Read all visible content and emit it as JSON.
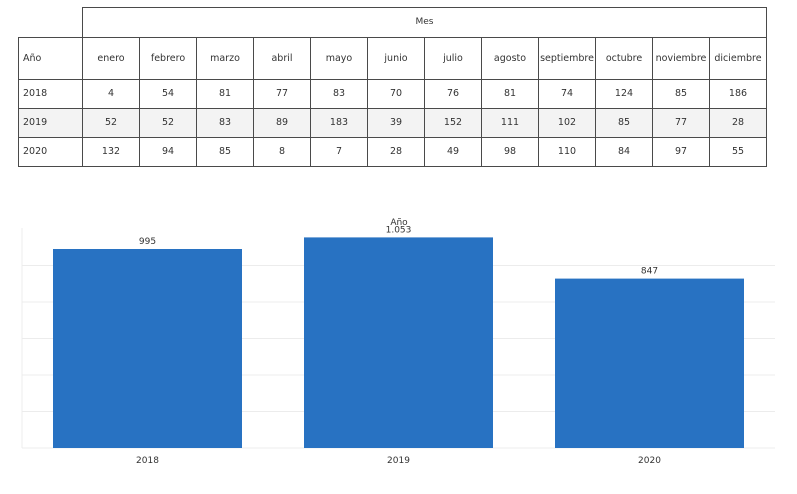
{
  "table": {
    "column_group_label": "Mes",
    "row_header_label": "Año",
    "months": [
      "enero",
      "febrero",
      "marzo",
      "abril",
      "mayo",
      "junio",
      "julio",
      "agosto",
      "septiembre",
      "octubre",
      "noviembre",
      "diciembre"
    ],
    "rows": [
      {
        "year": "2018",
        "values": [
          "4",
          "54",
          "81",
          "77",
          "83",
          "70",
          "76",
          "81",
          "74",
          "124",
          "85",
          "186"
        ]
      },
      {
        "year": "2019",
        "values": [
          "52",
          "52",
          "83",
          "89",
          "183",
          "39",
          "152",
          "111",
          "102",
          "85",
          "77",
          "28"
        ]
      },
      {
        "year": "2020",
        "values": [
          "132",
          "94",
          "85",
          "8",
          "7",
          "28",
          "49",
          "98",
          "110",
          "84",
          "97",
          "55"
        ]
      }
    ]
  },
  "chart_data": {
    "type": "bar",
    "title": "Año",
    "categories": [
      "2018",
      "2019",
      "2020"
    ],
    "values": [
      995,
      1053,
      847
    ],
    "value_labels": [
      "995",
      "1.053",
      "847"
    ],
    "ylim": [
      0,
      1100
    ],
    "grid": true,
    "bar_color": "#2872c2"
  }
}
